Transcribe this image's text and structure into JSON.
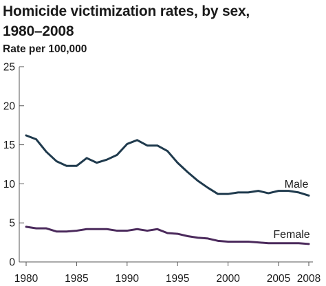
{
  "chart_data": {
    "type": "line",
    "title": "Homicide victimization rates, by sex, 1980–2008",
    "title_lines": [
      "Homicide victimization rates, by sex,",
      "1980–2008"
    ],
    "ylabel": "Rate per 100,000",
    "xlabel": "",
    "xlim": [
      1980,
      2008
    ],
    "ylim": [
      0,
      25
    ],
    "x_ticks": [
      1980,
      1985,
      1990,
      1995,
      2000,
      2005,
      2008
    ],
    "x_tick_labels": [
      "1980",
      "1985",
      "1990",
      "1995",
      "2000",
      "2005",
      "2008"
    ],
    "y_ticks": [
      0,
      5,
      10,
      15,
      20,
      25
    ],
    "y_tick_labels": [
      "0",
      "5",
      "10",
      "15",
      "20",
      "25"
    ],
    "grid": false,
    "x": [
      1980,
      1981,
      1982,
      1983,
      1984,
      1985,
      1986,
      1987,
      1988,
      1989,
      1990,
      1991,
      1992,
      1993,
      1994,
      1995,
      1996,
      1997,
      1998,
      1999,
      2000,
      2001,
      2002,
      2003,
      2004,
      2005,
      2006,
      2007,
      2008
    ],
    "series": [
      {
        "name": "Male",
        "color": "#1f3a4d",
        "values": [
          16.2,
          15.7,
          14.1,
          12.9,
          12.3,
          12.3,
          13.3,
          12.7,
          13.1,
          13.7,
          15.1,
          15.6,
          14.9,
          14.9,
          14.2,
          12.7,
          11.5,
          10.4,
          9.5,
          8.7,
          8.7,
          8.9,
          8.9,
          9.1,
          8.8,
          9.1,
          9.1,
          8.9,
          8.5
        ]
      },
      {
        "name": "Female",
        "color": "#4b2a5c",
        "values": [
          4.5,
          4.3,
          4.3,
          3.9,
          3.9,
          4.0,
          4.2,
          4.2,
          4.2,
          4.0,
          4.0,
          4.2,
          4.0,
          4.2,
          3.7,
          3.6,
          3.3,
          3.1,
          3.0,
          2.7,
          2.6,
          2.6,
          2.6,
          2.5,
          2.4,
          2.4,
          2.4,
          2.4,
          2.3
        ]
      }
    ]
  }
}
